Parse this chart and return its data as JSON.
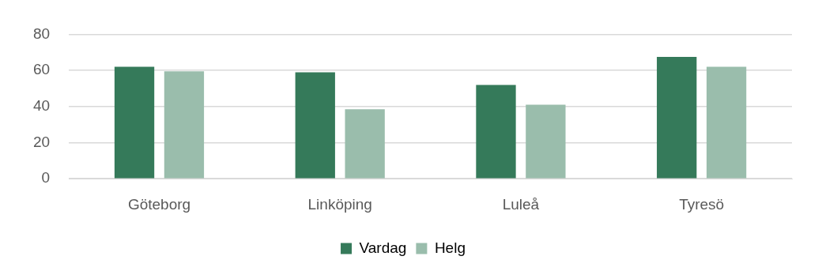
{
  "chart_data": {
    "type": "bar",
    "categories": [
      "Göteborg",
      "Linköping",
      "Luleå",
      "Tyresö"
    ],
    "series": [
      {
        "name": "Vardag",
        "color": "#357a5a",
        "values": [
          62,
          59,
          52,
          67.5
        ]
      },
      {
        "name": "Helg",
        "color": "#9abdac",
        "values": [
          59.5,
          38.5,
          41,
          62
        ]
      }
    ],
    "ylim": [
      0,
      80
    ],
    "yticks": [
      0,
      20,
      40,
      60,
      80
    ],
    "grid": "y",
    "legend": "bottom"
  }
}
